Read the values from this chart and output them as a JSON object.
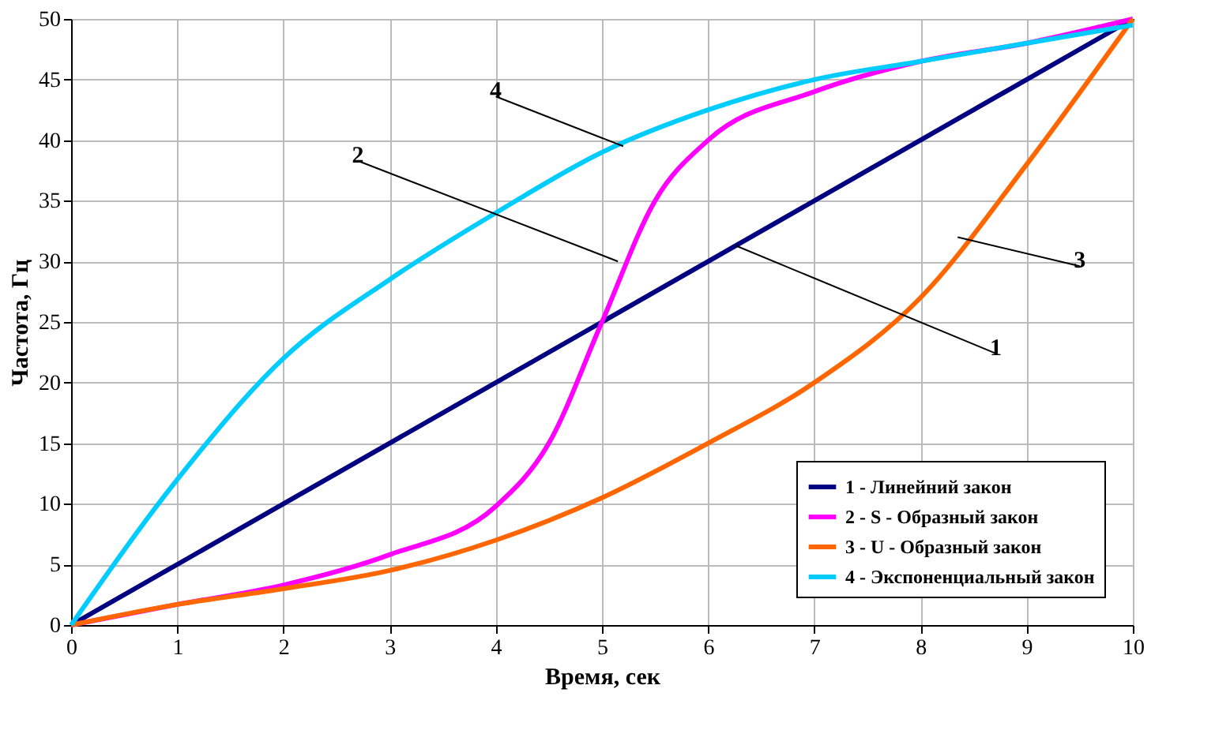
{
  "chart_data": {
    "type": "line",
    "xlabel": "Время, сек",
    "ylabel": "Частота, Гц",
    "xlim": [
      0,
      10
    ],
    "xticks": [
      0,
      1,
      2,
      3,
      4,
      5,
      6,
      7,
      8,
      9,
      10
    ],
    "ylim": [
      0,
      50
    ],
    "yticks": [
      0,
      5,
      10,
      15,
      20,
      25,
      30,
      35,
      40,
      45,
      50
    ],
    "grid": true,
    "legend": "bottom right",
    "marker": "none",
    "line_style": "solid",
    "series": [
      {
        "name": "1 - Линейний закон",
        "color": "#000080",
        "x": [
          0,
          10
        ],
        "values": [
          0,
          50
        ]
      },
      {
        "name": "2 - S - Образный закон",
        "color": "#ff00ff",
        "x": [
          0,
          1,
          2,
          3,
          4,
          4.5,
          5,
          5.5,
          6,
          7,
          8,
          9,
          10
        ],
        "values": [
          0,
          1.7,
          3.3,
          5.8,
          9.8,
          15,
          25,
          35,
          40,
          44,
          46.5,
          48,
          50
        ]
      },
      {
        "name": "3 - U - Образный закон",
        "color": "#ff6600",
        "x": [
          0,
          1,
          2,
          3,
          4,
          5,
          6,
          7,
          8,
          9,
          10
        ],
        "values": [
          0,
          1.7,
          3,
          4.5,
          7,
          10.5,
          15,
          20,
          27,
          38,
          50
        ]
      },
      {
        "name": "4 - Экспоненциальный закон",
        "color": "#00ccff",
        "x": [
          0,
          1,
          2,
          3,
          4,
          5,
          6,
          7,
          8,
          9,
          10
        ],
        "values": [
          0,
          12,
          22,
          28.5,
          34,
          39,
          42.5,
          45,
          46.5,
          48,
          49.5
        ]
      }
    ],
    "annotations": [
      {
        "text": "1",
        "x": 6.26,
        "y": 31.3
      },
      {
        "text": "2",
        "x": 5.15,
        "y": 30
      },
      {
        "text": "3",
        "x": 8.35,
        "y": 32
      },
      {
        "text": "4",
        "x": 5.2,
        "y": 39.5
      }
    ]
  }
}
